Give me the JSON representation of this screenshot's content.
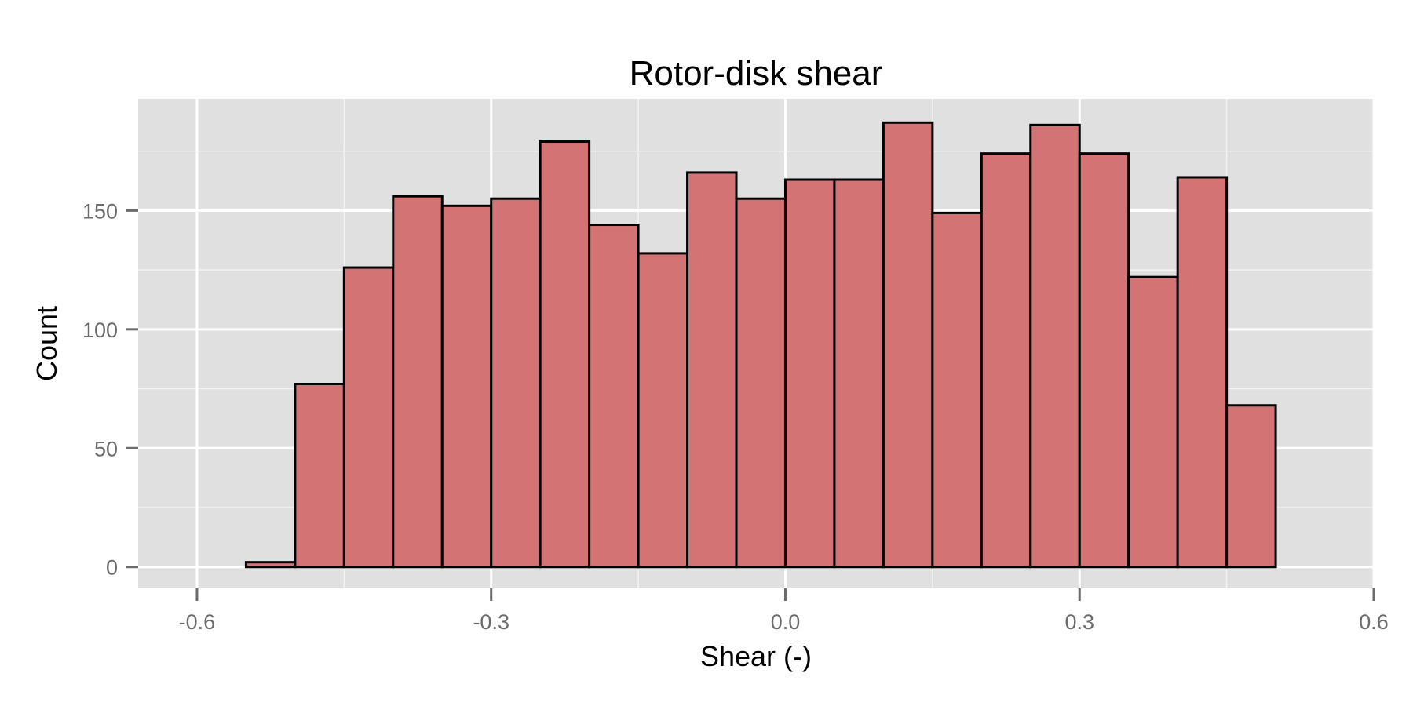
{
  "chart_data": {
    "type": "bar",
    "title": "Rotor-disk shear",
    "xlabel": "Shear (-)",
    "ylabel": "Count",
    "bin_width": 0.05,
    "bin_starts": [
      -0.6,
      -0.55,
      -0.5,
      -0.45,
      -0.4,
      -0.35,
      -0.3,
      -0.25,
      -0.2,
      -0.15,
      -0.1,
      -0.05,
      0.0,
      0.05,
      0.1,
      0.15,
      0.2,
      0.25,
      0.3,
      0.35,
      0.4,
      0.45,
      0.5
    ],
    "values": [
      0,
      2,
      77,
      126,
      156,
      152,
      155,
      179,
      144,
      132,
      166,
      155,
      163,
      163,
      187,
      149,
      174,
      186,
      174,
      122,
      164,
      68,
      0
    ],
    "xlim": [
      -0.66,
      0.6
    ],
    "ylim": [
      -9,
      197
    ],
    "x_ticks": [
      -0.6,
      -0.3,
      0.0,
      0.3,
      0.6
    ],
    "x_tick_labels": [
      "-0.6",
      "-0.3",
      "0.0",
      "0.3",
      "0.6"
    ],
    "y_ticks": [
      0,
      50,
      100,
      150
    ],
    "y_tick_labels": [
      "0",
      "50",
      "100",
      "150"
    ],
    "grid": true,
    "colors": {
      "bar_fill": "#d47374",
      "bar_stroke": "#000000",
      "panel_background": "#e0e0e0",
      "grid_major": "#ffffff",
      "grid_minor": "#f2f2f2"
    }
  }
}
